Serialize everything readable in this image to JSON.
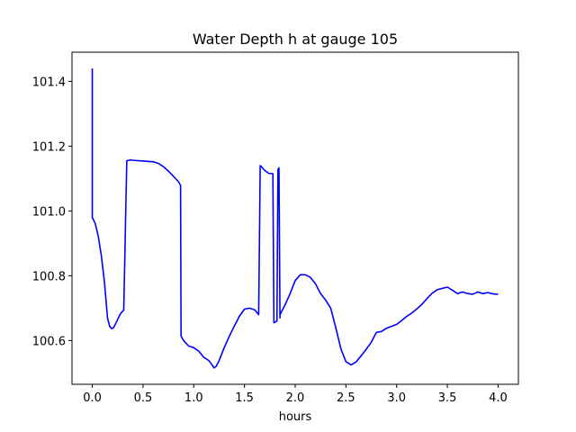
{
  "chart_data": {
    "type": "line",
    "title": "Water Depth h at gauge 105",
    "xlabel": "hours",
    "ylabel": "",
    "xlim": [
      -0.2,
      4.2
    ],
    "ylim": [
      100.465,
      101.49
    ],
    "xticks": [
      0.0,
      0.5,
      1.0,
      1.5,
      2.0,
      2.5,
      3.0,
      3.5,
      4.0
    ],
    "xtick_labels": [
      "0.0",
      "0.5",
      "1.0",
      "1.5",
      "2.0",
      "2.5",
      "3.0",
      "3.5",
      "4.0"
    ],
    "yticks": [
      100.6,
      100.8,
      101.0,
      101.2,
      101.4
    ],
    "ytick_labels": [
      "100.6",
      "100.8",
      "101.0",
      "101.2",
      "101.4"
    ],
    "grid": false,
    "series": [
      {
        "color": "#0000ff",
        "x": [
          0.0,
          0.0,
          0.005,
          0.03,
          0.06,
          0.09,
          0.12,
          0.15,
          0.17,
          0.19,
          0.21,
          0.23,
          0.25,
          0.28,
          0.31,
          0.34,
          0.37,
          0.375,
          0.38,
          0.42,
          0.5,
          0.6,
          0.65,
          0.7,
          0.75,
          0.8,
          0.85,
          0.87,
          0.875,
          0.9,
          0.95,
          1.0,
          1.05,
          1.1,
          1.15,
          1.2,
          1.22,
          1.25,
          1.3,
          1.35,
          1.4,
          1.45,
          1.5,
          1.55,
          1.6,
          1.64,
          1.655,
          1.66,
          1.7,
          1.74,
          1.78,
          1.79,
          1.795,
          1.82,
          1.83,
          1.84,
          1.85,
          1.85,
          1.9,
          1.95,
          2.0,
          2.05,
          2.1,
          2.15,
          2.2,
          2.25,
          2.3,
          2.35,
          2.4,
          2.45,
          2.5,
          2.55,
          2.6,
          2.65,
          2.7,
          2.75,
          2.8,
          2.85,
          2.9,
          3.0,
          3.05,
          3.1,
          3.15,
          3.2,
          3.25,
          3.3,
          3.35,
          3.4,
          3.45,
          3.5,
          3.55,
          3.6,
          3.65,
          3.7,
          3.75,
          3.8,
          3.85,
          3.9,
          3.95,
          4.0
        ],
        "y": [
          101.44,
          100.978,
          100.977,
          100.96,
          100.92,
          100.86,
          100.78,
          100.67,
          100.645,
          100.637,
          100.64,
          100.652,
          100.665,
          100.684,
          100.694,
          101.155,
          101.157,
          101.158,
          101.157,
          101.156,
          101.154,
          101.152,
          101.147,
          101.137,
          101.123,
          101.107,
          101.09,
          101.079,
          100.614,
          100.6,
          100.583,
          100.578,
          100.567,
          100.548,
          100.538,
          100.516,
          100.52,
          100.538,
          100.578,
          100.613,
          100.645,
          100.675,
          100.697,
          100.7,
          100.695,
          100.68,
          101.14,
          101.139,
          101.125,
          101.116,
          101.115,
          100.655,
          100.656,
          100.66,
          101.128,
          101.133,
          100.67,
          100.68,
          100.71,
          100.745,
          100.785,
          100.803,
          100.803,
          100.795,
          100.775,
          100.745,
          100.725,
          100.7,
          100.64,
          100.575,
          100.535,
          100.525,
          100.534,
          100.553,
          100.573,
          100.595,
          100.625,
          100.628,
          100.638,
          100.65,
          100.662,
          100.675,
          100.685,
          100.698,
          100.712,
          100.73,
          100.746,
          100.757,
          100.761,
          100.765,
          100.755,
          100.745,
          100.75,
          100.745,
          100.743,
          100.75,
          100.745,
          100.748,
          100.744,
          100.743
        ]
      }
    ]
  }
}
